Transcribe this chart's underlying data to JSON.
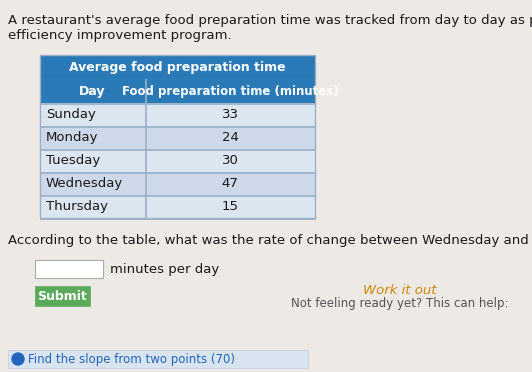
{
  "bg_color": "#ede9e4",
  "title_line1": "A restaurant's average food preparation time was tracked from day to day as part of an",
  "title_line2": "efficiency improvement program.",
  "title_fontsize": 9.5,
  "title_color": "#1a1a1a",
  "table_header_main": "Average food preparation time",
  "table_header_col1": "Day",
  "table_header_col2": "Food preparation time (minutes)",
  "table_header_bg": "#2a7ab8",
  "table_subheader_bg": "#2a7ab8",
  "table_header_color": "#ffffff",
  "table_row_bg_light": "#dce6f0",
  "table_row_bg_mid": "#cdd9e8",
  "table_border_color": "#9ab0c8",
  "days": [
    "Sunday",
    "Monday",
    "Tuesday",
    "Wednesday",
    "Thursday"
  ],
  "times": [
    "33",
    "24",
    "30",
    "47",
    "15"
  ],
  "question_text": "According to the table, what was the rate of change between Wednesday and Thursday?",
  "question_fontsize": 9.5,
  "question_color": "#1a1a1a",
  "input_label": "minutes per day",
  "submit_bg": "#5aaa5a",
  "submit_text": "Submit",
  "submit_color": "#ffffff",
  "workitout_text": "Work it out",
  "workitout_color": "#cc8800",
  "notready_text": "Not feeling ready yet? This can help:",
  "notready_color": "#555555",
  "link_text": "Find the slope from two points (70)",
  "link_color": "#2266bb",
  "link_bg": "#d8e4f0",
  "link_icon_color": "#2266bb"
}
